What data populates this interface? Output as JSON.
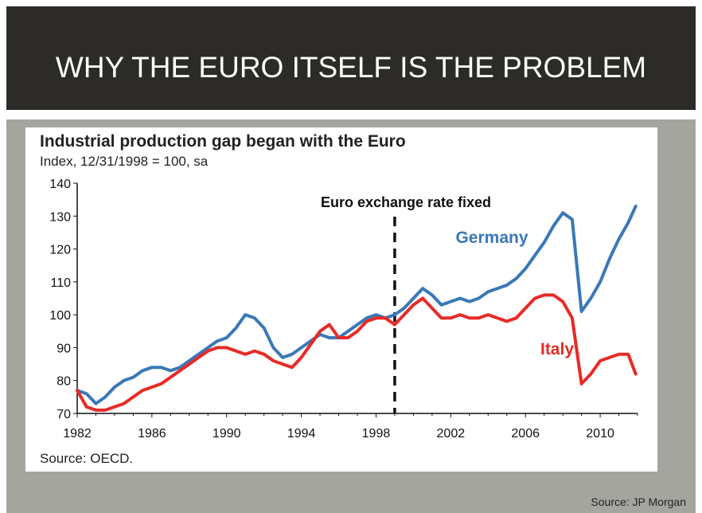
{
  "slide": {
    "title": "WHY THE EURO ITSELF IS THE PROBLEM",
    "source": "Source: JP Morgan"
  },
  "chart_data": {
    "type": "line",
    "title": "Industrial production gap began with the Euro",
    "subtitle": "Index, 12/31/1998 = 100, sa",
    "source": "Source: OECD.",
    "xlabel": "",
    "ylabel": "",
    "xlim": [
      1982,
      2012
    ],
    "ylim": [
      70,
      140
    ],
    "x_ticks": [
      1982,
      1986,
      1990,
      1994,
      1998,
      2002,
      2006,
      2010
    ],
    "y_ticks": [
      70,
      80,
      90,
      100,
      110,
      120,
      130,
      140
    ],
    "grid": false,
    "annotation": {
      "text": "Euro exchange rate fixed",
      "x": 1999
    },
    "series": [
      {
        "name": "Germany",
        "color": "#3a78b8",
        "x": [
          1982.0,
          1982.5,
          1983.0,
          1983.5,
          1984.0,
          1984.5,
          1985.0,
          1985.5,
          1986.0,
          1986.5,
          1987.0,
          1987.5,
          1988.0,
          1988.5,
          1989.0,
          1989.5,
          1990.0,
          1990.5,
          1991.0,
          1991.5,
          1992.0,
          1992.5,
          1993.0,
          1993.5,
          1994.0,
          1994.5,
          1995.0,
          1995.5,
          1996.0,
          1996.5,
          1997.0,
          1997.5,
          1998.0,
          1998.5,
          1999.0,
          1999.5,
          2000.0,
          2000.5,
          2001.0,
          2001.5,
          2002.0,
          2002.5,
          2003.0,
          2003.5,
          2004.0,
          2004.5,
          2005.0,
          2005.5,
          2006.0,
          2006.5,
          2007.0,
          2007.5,
          2008.0,
          2008.5,
          2009.0,
          2009.5,
          2010.0,
          2010.5,
          2011.0,
          2011.5,
          2011.9
        ],
        "values": [
          77,
          76,
          73,
          75,
          78,
          80,
          81,
          83,
          84,
          84,
          83,
          84,
          86,
          88,
          90,
          92,
          93,
          96,
          100,
          99,
          96,
          90,
          87,
          88,
          90,
          92,
          94,
          93,
          93,
          95,
          97,
          99,
          100,
          99,
          100,
          102,
          105,
          108,
          106,
          103,
          104,
          105,
          104,
          105,
          107,
          108,
          109,
          111,
          114,
          118,
          122,
          127,
          131,
          129,
          101,
          105,
          110,
          117,
          123,
          128,
          133
        ]
      },
      {
        "name": "Italy",
        "color": "#e82a26",
        "x": [
          1982.0,
          1982.5,
          1983.0,
          1983.5,
          1984.0,
          1984.5,
          1985.0,
          1985.5,
          1986.0,
          1986.5,
          1987.0,
          1987.5,
          1988.0,
          1988.5,
          1989.0,
          1989.5,
          1990.0,
          1990.5,
          1991.0,
          1991.5,
          1992.0,
          1992.5,
          1993.0,
          1993.5,
          1994.0,
          1994.5,
          1995.0,
          1995.5,
          1996.0,
          1996.5,
          1997.0,
          1997.5,
          1998.0,
          1998.5,
          1999.0,
          1999.5,
          2000.0,
          2000.5,
          2001.0,
          2001.5,
          2002.0,
          2002.5,
          2003.0,
          2003.5,
          2004.0,
          2004.5,
          2005.0,
          2005.5,
          2006.0,
          2006.5,
          2007.0,
          2007.5,
          2008.0,
          2008.5,
          2009.0,
          2009.5,
          2010.0,
          2010.5,
          2011.0,
          2011.5,
          2011.9
        ],
        "values": [
          77,
          72,
          71,
          71,
          72,
          73,
          75,
          77,
          78,
          79,
          81,
          83,
          85,
          87,
          89,
          90,
          90,
          89,
          88,
          89,
          88,
          86,
          85,
          84,
          87,
          91,
          95,
          97,
          93,
          93,
          95,
          98,
          99,
          99,
          97,
          100,
          103,
          105,
          102,
          99,
          99,
          100,
          99,
          99,
          100,
          99,
          98,
          99,
          102,
          105,
          106,
          106,
          104,
          99,
          79,
          82,
          86,
          87,
          88,
          88,
          82
        ]
      }
    ]
  }
}
